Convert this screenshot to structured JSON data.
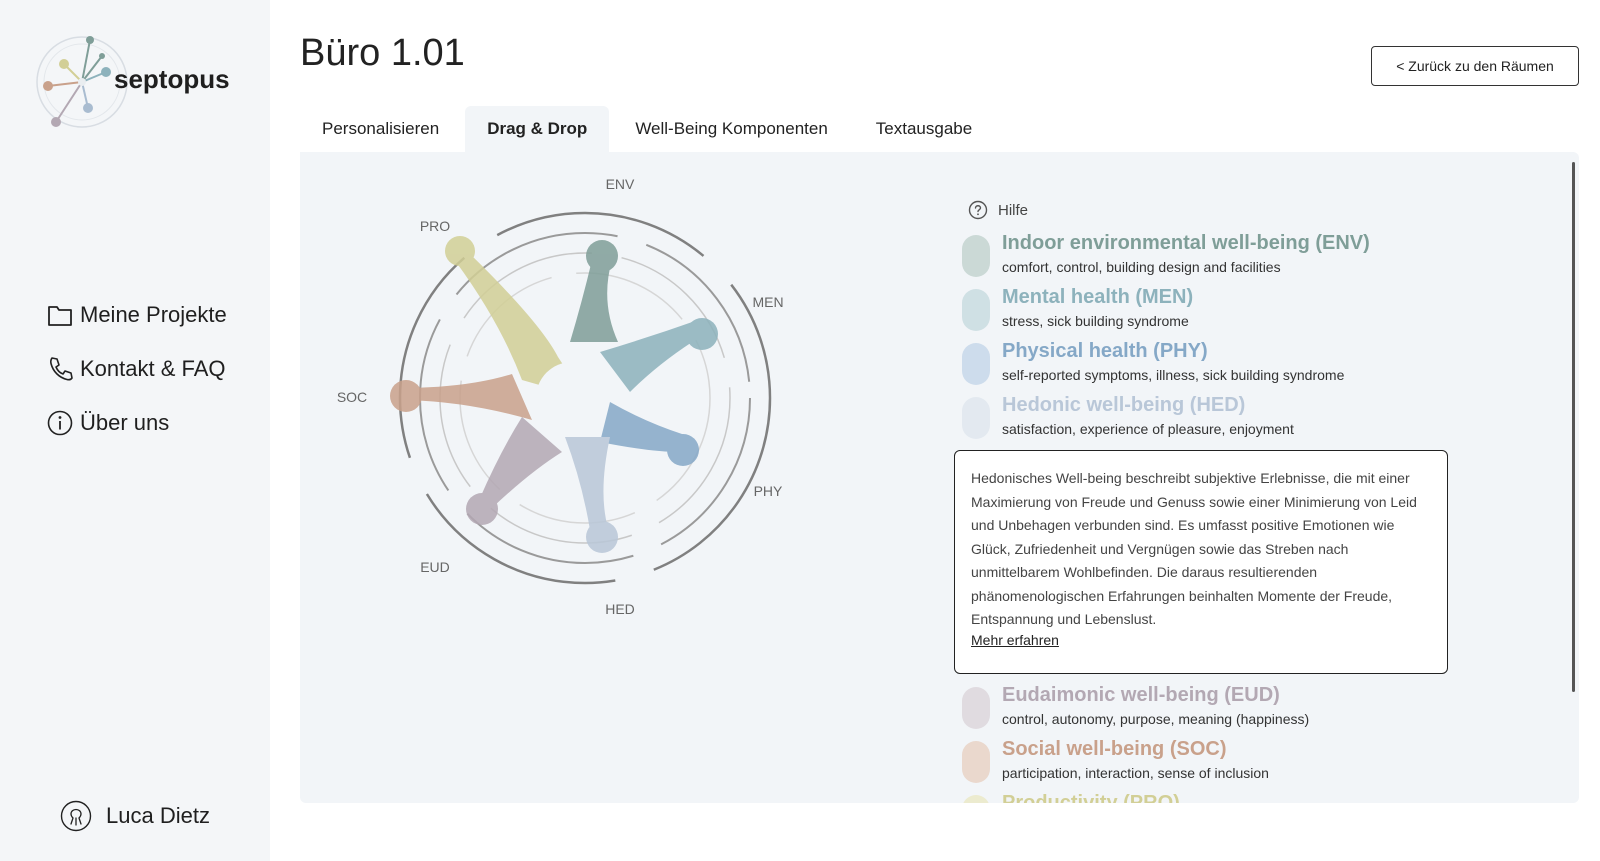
{
  "app": {
    "name": "septopus"
  },
  "sidebar": {
    "nav": [
      {
        "label": "Meine Projekte",
        "icon": "folder-icon"
      },
      {
        "label": "Kontakt & FAQ",
        "icon": "phone-icon"
      },
      {
        "label": "Über uns",
        "icon": "info-icon"
      }
    ],
    "user": {
      "name": "Luca Dietz",
      "icon": "octopus-icon"
    }
  },
  "header": {
    "title": "Büro 1.01",
    "back_label": "< Zurück zu den Räumen"
  },
  "tabs": [
    {
      "label": "Personalisieren",
      "active": false
    },
    {
      "label": "Drag & Drop",
      "active": true
    },
    {
      "label": "Well-Being Komponenten",
      "active": false
    },
    {
      "label": "Textausgabe",
      "active": false
    }
  ],
  "chart": {
    "labels": {
      "env": "ENV",
      "men": "MEN",
      "phy": "PHY",
      "hed": "HED",
      "eud": "EUD",
      "soc": "SOC",
      "pro": "PRO"
    }
  },
  "help": {
    "label": "Hilfe"
  },
  "components": [
    {
      "title": "Indoor environmental well-being (ENV)",
      "sub": "comfort, control, building design and facilities",
      "color": "#7f9e98"
    },
    {
      "title": "Mental health (MEN)",
      "sub": "stress, sick building syndrome",
      "color": "#8db2bc"
    },
    {
      "title": "Physical health (PHY)",
      "sub": "self-reported symptoms, illness, sick building syndrome",
      "color": "#85a8c7"
    },
    {
      "title": "Hedonic well-being (HED)",
      "sub": "satisfaction, experience of pleasure, enjoyment",
      "color": "#b9c7d8"
    }
  ],
  "info": {
    "text": "Hedonisches Well-being beschreibt subjektive Erlebnisse, die mit einer Maximierung von Freude und Genuss sowie einer Minimierung von Leid und Unbehagen verbunden sind. Es umfasst positive Emotionen wie Glück, Zufriedenheit und Vergnügen sowie das Streben nach unmittelbarem Wohlbefinden. Die daraus resultierenden phänomenologischen Erfahrungen beinhalten Momente der Freude, Entspannung und Lebenslust.",
    "link": "Mehr erfahren"
  },
  "components_after": [
    {
      "title": "Eudaimonic well-being (EUD)",
      "sub": "control, autonomy, purpose, meaning (happiness)",
      "color": "#b3a8b3"
    },
    {
      "title": "Social well-being (SOC)",
      "sub": "participation, interaction, sense of inclusion",
      "color": "#c9a18b"
    },
    {
      "title": "Productivity (PRO)",
      "sub": "",
      "color": "#d2cf96"
    }
  ]
}
